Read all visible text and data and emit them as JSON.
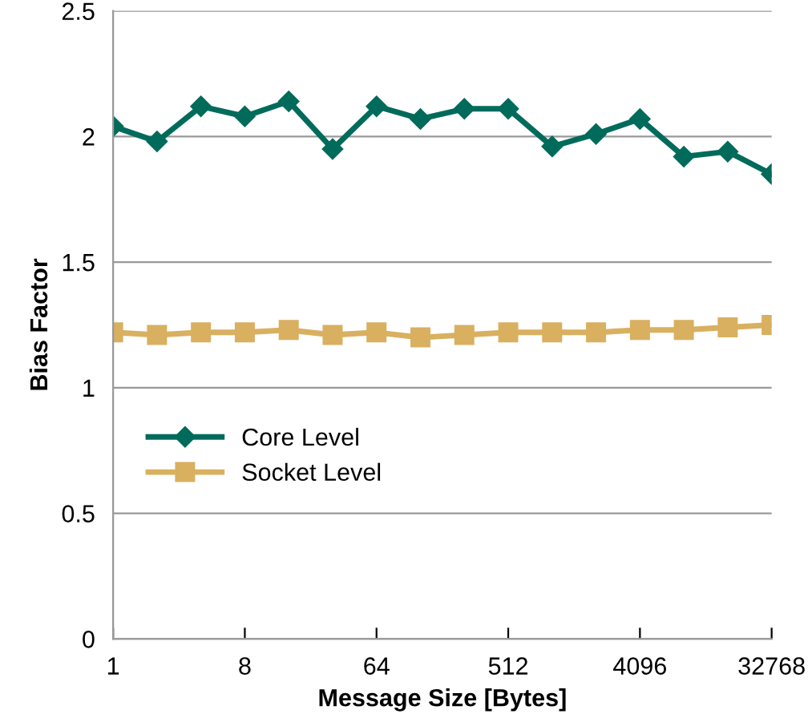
{
  "chart_data": {
    "type": "line",
    "xlabel": "Message Size [Bytes]",
    "ylabel": "Bias Factor",
    "x": [
      1,
      2,
      4,
      8,
      16,
      32,
      64,
      128,
      256,
      512,
      1024,
      2048,
      4096,
      8192,
      16384,
      32768
    ],
    "log": "x",
    "xlim": [
      1,
      32768
    ],
    "xticks": [
      1,
      8,
      64,
      512,
      4096,
      32768
    ],
    "ylim": [
      0,
      2.5
    ],
    "yticks": [
      0,
      0.5,
      1,
      1.5,
      2,
      2.5
    ],
    "grid": "y",
    "legend": "center left",
    "line_style": "solid",
    "series": [
      {
        "name": "Core Level",
        "color": "#006b5b",
        "marker": "diamond",
        "values": [
          2.04,
          1.98,
          2.12,
          2.08,
          2.14,
          1.95,
          2.12,
          2.07,
          2.11,
          2.11,
          1.96,
          2.01,
          2.07,
          1.92,
          1.94,
          1.85
        ]
      },
      {
        "name": "Socket Level",
        "color": "#d9b060",
        "marker": "square",
        "values": [
          1.22,
          1.21,
          1.22,
          1.22,
          1.23,
          1.21,
          1.22,
          1.2,
          1.21,
          1.22,
          1.22,
          1.22,
          1.23,
          1.23,
          1.24,
          1.25
        ]
      }
    ]
  }
}
